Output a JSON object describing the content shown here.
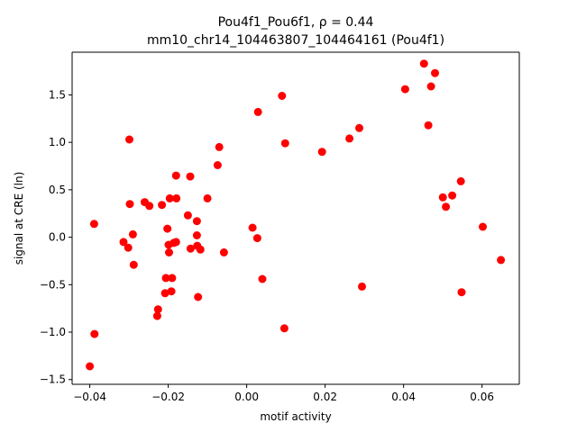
{
  "chart_data": {
    "type": "scatter",
    "title_line1": "Pou4f1_Pou6f1, ρ = 0.44",
    "title_line2": "mm10_chr14_104463807_104464161 (Pou4f1)",
    "xlabel": "motif activity",
    "ylabel": "signal at CRE (ln)",
    "xlim": [
      -0.0445,
      0.0695
    ],
    "ylim": [
      -1.55,
      1.95
    ],
    "xticks": [
      -0.04,
      -0.02,
      0.0,
      0.02,
      0.04,
      0.06
    ],
    "xtick_labels": [
      "−0.04",
      "−0.02",
      "0.00",
      "0.02",
      "0.04",
      "0.06"
    ],
    "yticks": [
      -1.5,
      -1.0,
      -0.5,
      0.0,
      0.5,
      1.0,
      1.5
    ],
    "ytick_labels": [
      "−1.5",
      "−1.0",
      "−0.5",
      "0.0",
      "0.5",
      "1.0",
      "1.5"
    ],
    "marker_color": "#ff0000",
    "grid": false,
    "points": [
      [
        -0.04,
        -1.36
      ],
      [
        -0.0388,
        -1.02
      ],
      [
        -0.0389,
        0.14
      ],
      [
        -0.0314,
        -0.05
      ],
      [
        -0.0302,
        -0.11
      ],
      [
        -0.0299,
        1.03
      ],
      [
        -0.0298,
        0.35
      ],
      [
        -0.029,
        0.03
      ],
      [
        -0.0288,
        -0.29
      ],
      [
        -0.026,
        0.37
      ],
      [
        -0.0248,
        0.33
      ],
      [
        -0.0228,
        -0.83
      ],
      [
        -0.0226,
        -0.76
      ],
      [
        -0.0216,
        0.34
      ],
      [
        -0.0208,
        -0.59
      ],
      [
        -0.0206,
        -0.43
      ],
      [
        -0.0202,
        0.09
      ],
      [
        -0.0199,
        -0.08
      ],
      [
        -0.0198,
        -0.16
      ],
      [
        -0.0196,
        0.41
      ],
      [
        -0.0192,
        -0.57
      ],
      [
        -0.019,
        -0.43
      ],
      [
        -0.0186,
        -0.06
      ],
      [
        -0.018,
        0.65
      ],
      [
        -0.018,
        -0.05
      ],
      [
        -0.0179,
        0.41
      ],
      [
        -0.015,
        0.23
      ],
      [
        -0.0144,
        0.64
      ],
      [
        -0.0143,
        -0.12
      ],
      [
        -0.0127,
        0.02
      ],
      [
        -0.0127,
        0.17
      ],
      [
        -0.0126,
        -0.09
      ],
      [
        -0.0124,
        -0.63
      ],
      [
        -0.0118,
        -0.13
      ],
      [
        -0.01,
        0.41
      ],
      [
        -0.0074,
        0.76
      ],
      [
        -0.007,
        0.95
      ],
      [
        -0.0058,
        -0.16
      ],
      [
        0.0015,
        0.1
      ],
      [
        0.0027,
        -0.01
      ],
      [
        0.0029,
        1.32
      ],
      [
        0.004,
        -0.44
      ],
      [
        0.009,
        1.49
      ],
      [
        0.0096,
        -0.96
      ],
      [
        0.0098,
        0.99
      ],
      [
        0.0192,
        0.9
      ],
      [
        0.0262,
        1.04
      ],
      [
        0.0287,
        1.15
      ],
      [
        0.0294,
        -0.52
      ],
      [
        0.0404,
        1.56
      ],
      [
        0.0452,
        1.83
      ],
      [
        0.0463,
        1.18
      ],
      [
        0.047,
        1.59
      ],
      [
        0.048,
        1.73
      ],
      [
        0.05,
        0.42
      ],
      [
        0.0508,
        0.32
      ],
      [
        0.0524,
        0.44
      ],
      [
        0.0546,
        0.59
      ],
      [
        0.0548,
        -0.58
      ],
      [
        0.0602,
        0.11
      ],
      [
        0.0648,
        -0.24
      ]
    ]
  }
}
